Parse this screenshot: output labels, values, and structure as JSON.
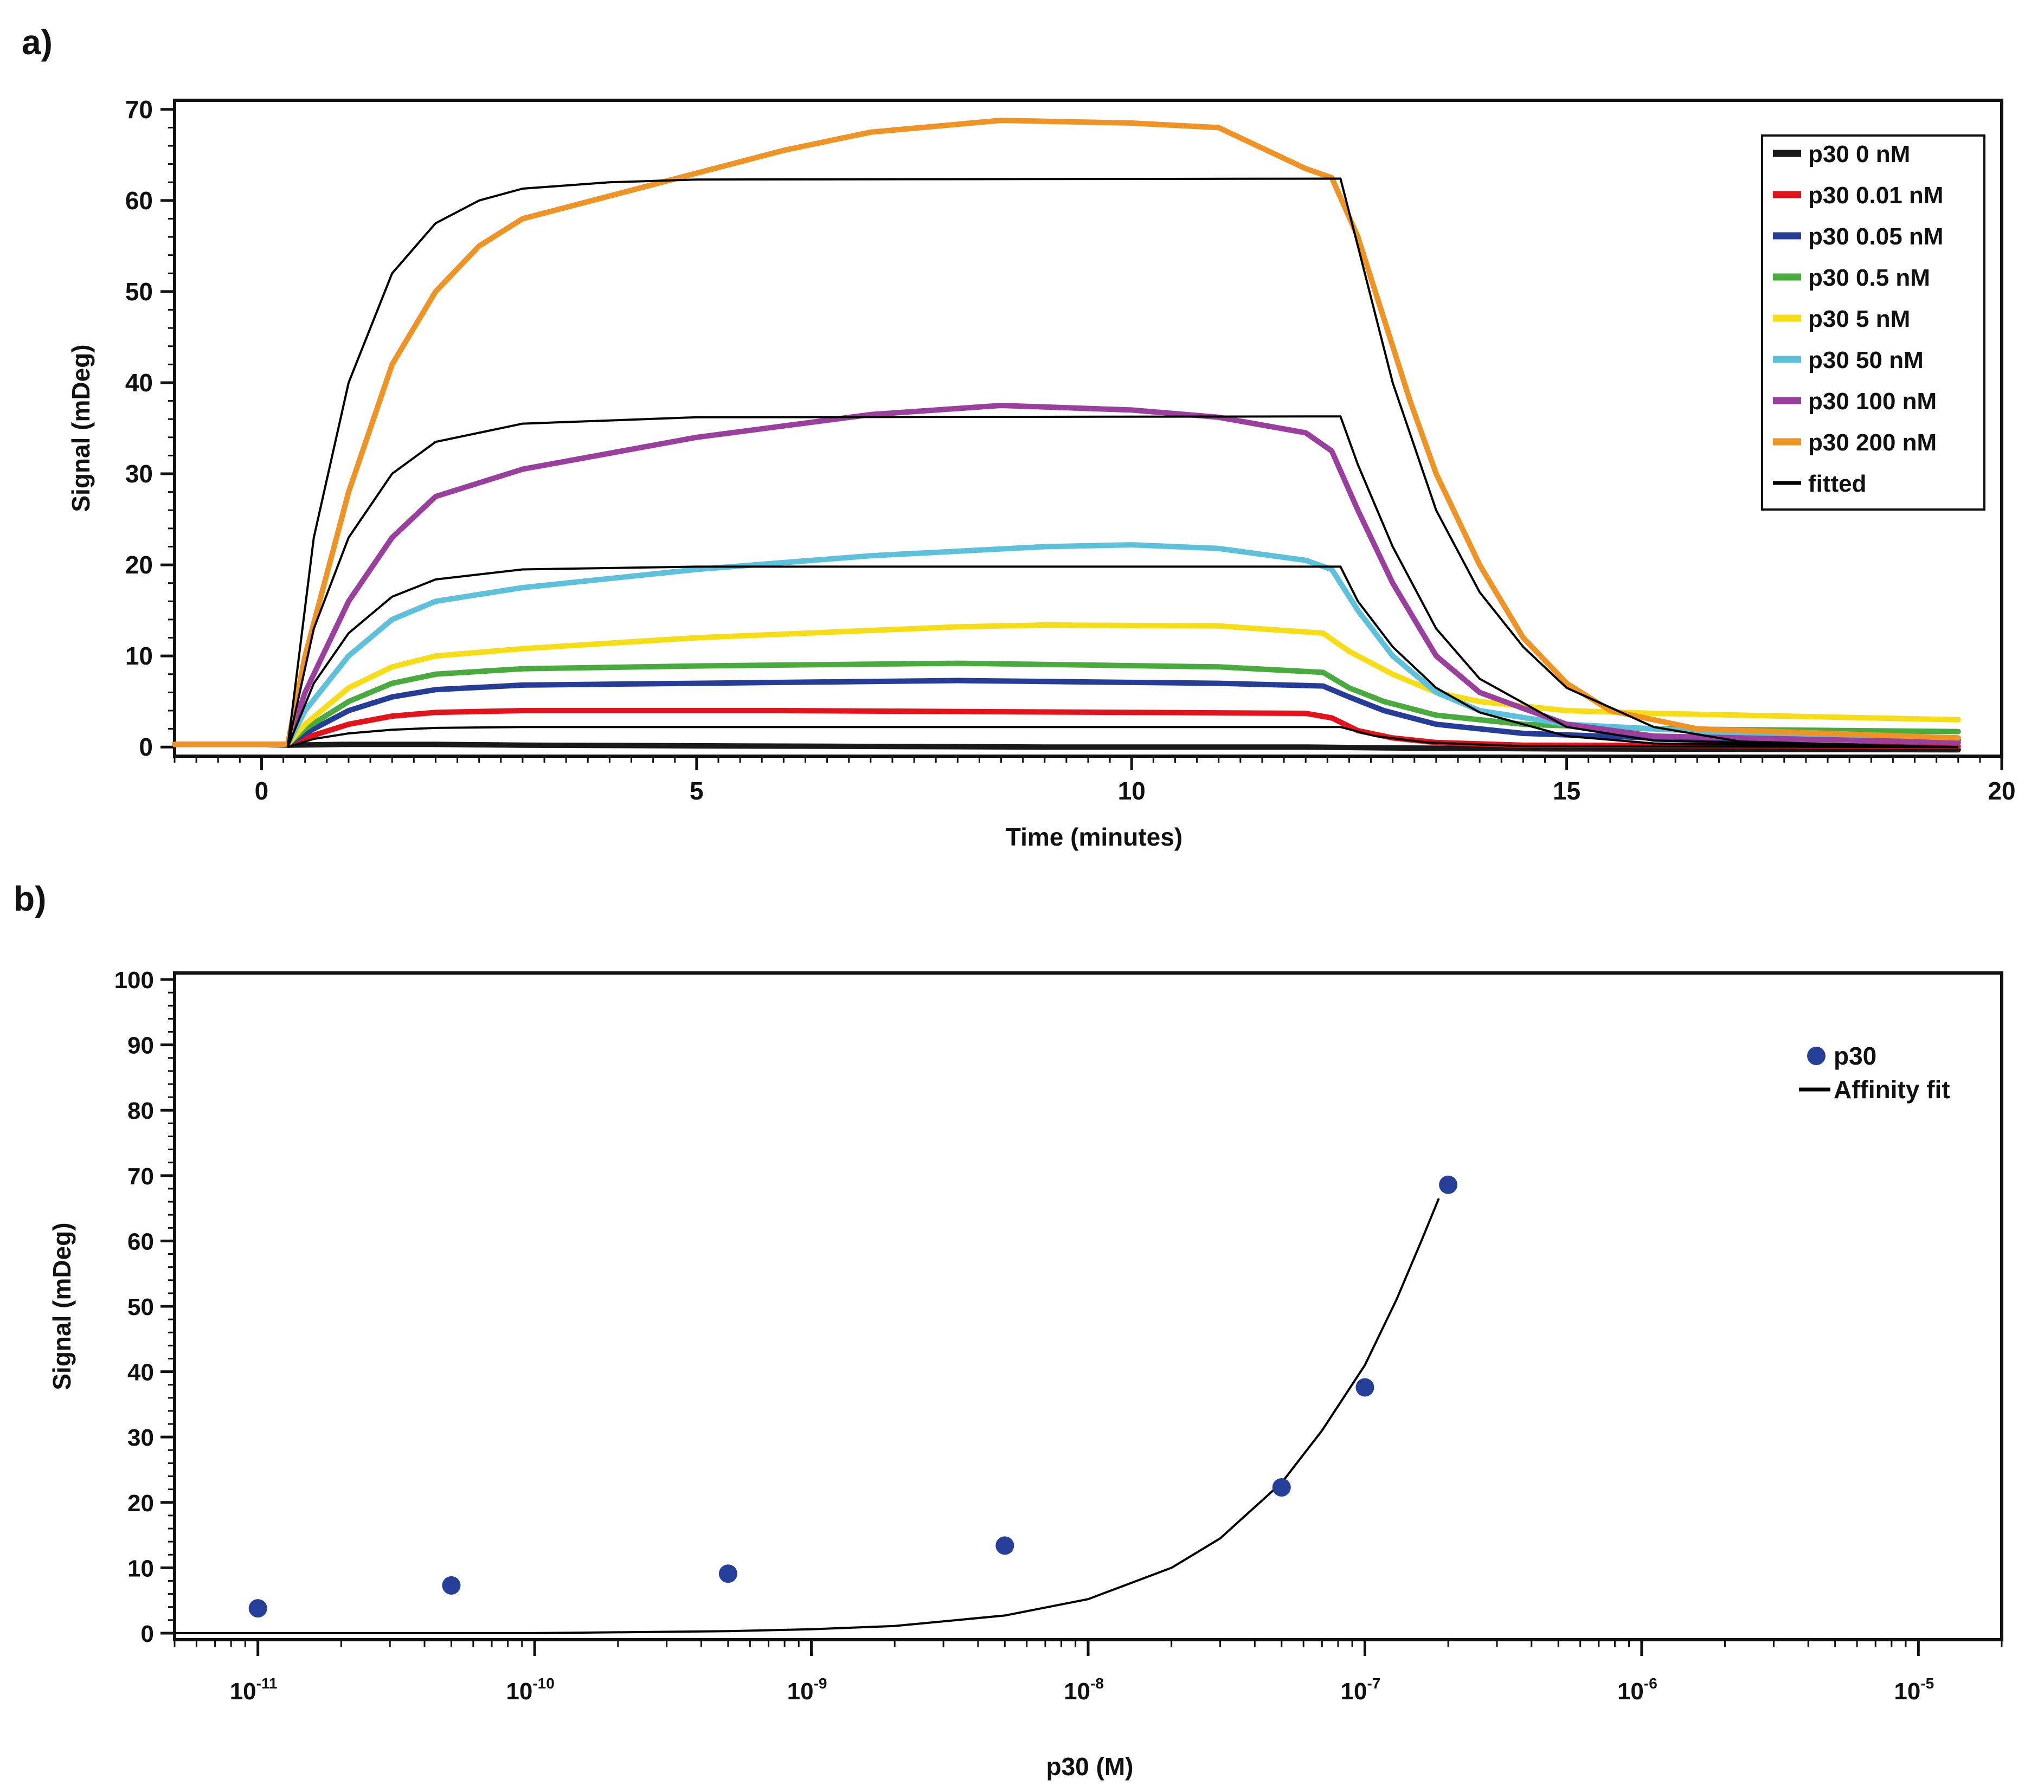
{
  "panel_labels": {
    "a": "a)",
    "b": "b)"
  },
  "colors": {
    "black": "#1a1a1a",
    "red": "#e3121b",
    "navy": "#263d97",
    "green": "#49aa3d",
    "yellow": "#f7dd16",
    "cyan": "#5ec1db",
    "purple": "#9a3f9d",
    "orange": "#ef9325",
    "fit": "#000000",
    "point": "#26409a"
  },
  "chart_data": [
    {
      "id": "a",
      "type": "line",
      "title": "",
      "xlabel": "Time (minutes)",
      "ylabel": "Signal (mDeg)",
      "xlim": [
        -1,
        20
      ],
      "ylim": [
        -1,
        71
      ],
      "xticks": [
        0,
        5,
        10,
        15,
        20
      ],
      "xtick_labels": [
        "0",
        "5",
        "10",
        "15",
        "20"
      ],
      "yticks": [
        0,
        10,
        20,
        30,
        40,
        50,
        60,
        70
      ],
      "ytick_labels": [
        "0",
        "10",
        "20",
        "30",
        "40",
        "50",
        "60",
        "70"
      ],
      "legend_position": "top-right",
      "series": [
        {
          "name": "p30 0 nM",
          "color": "black",
          "values": [
            [
              -1,
              0.3
            ],
            [
              0,
              0.3
            ],
            [
              0.3,
              0.2
            ],
            [
              1,
              0.3
            ],
            [
              2,
              0.3
            ],
            [
              3,
              0.2
            ],
            [
              6,
              0.1
            ],
            [
              9,
              0
            ],
            [
              12,
              0
            ],
            [
              13,
              -0.1
            ],
            [
              15,
              -0.2
            ],
            [
              19.5,
              -0.3
            ]
          ]
        },
        {
          "name": "p30 0.01 nM",
          "color": "red",
          "values": [
            [
              -1,
              0.3
            ],
            [
              0.3,
              0.3
            ],
            [
              0.5,
              1
            ],
            [
              1,
              2.5
            ],
            [
              1.5,
              3.4
            ],
            [
              2,
              3.8
            ],
            [
              3,
              4
            ],
            [
              6,
              4
            ],
            [
              10,
              3.8
            ],
            [
              12,
              3.7
            ],
            [
              12.3,
              3.2
            ],
            [
              12.6,
              1.8
            ],
            [
              13,
              1
            ],
            [
              13.5,
              0.5
            ],
            [
              14.5,
              0.2
            ],
            [
              19.5,
              0.1
            ]
          ]
        },
        {
          "name": "p30 0.05 nM",
          "color": "navy",
          "values": [
            [
              -1,
              0.3
            ],
            [
              0.3,
              0.3
            ],
            [
              0.5,
              1.5
            ],
            [
              1,
              4
            ],
            [
              1.5,
              5.5
            ],
            [
              2,
              6.3
            ],
            [
              3,
              6.8
            ],
            [
              5,
              7
            ],
            [
              8,
              7.3
            ],
            [
              11,
              7
            ],
            [
              12.2,
              6.7
            ],
            [
              12.5,
              5.5
            ],
            [
              12.9,
              4
            ],
            [
              13.5,
              2.5
            ],
            [
              14.5,
              1.5
            ],
            [
              16,
              1
            ],
            [
              19.5,
              0.8
            ]
          ]
        },
        {
          "name": "p30 0.5 nM",
          "color": "green",
          "values": [
            [
              -1,
              0.3
            ],
            [
              0.3,
              0.3
            ],
            [
              0.5,
              2
            ],
            [
              1,
              5
            ],
            [
              1.5,
              7
            ],
            [
              2,
              8
            ],
            [
              3,
              8.6
            ],
            [
              5,
              8.9
            ],
            [
              8,
              9.2
            ],
            [
              11,
              8.8
            ],
            [
              12.2,
              8.2
            ],
            [
              12.5,
              6.5
            ],
            [
              12.9,
              5
            ],
            [
              13.5,
              3.5
            ],
            [
              14.5,
              2.5
            ],
            [
              16,
              2
            ],
            [
              19.5,
              1.7
            ]
          ]
        },
        {
          "name": "p30 5 nM",
          "color": "yellow",
          "values": [
            [
              -1,
              0.3
            ],
            [
              0.3,
              0.3
            ],
            [
              0.5,
              2.5
            ],
            [
              1,
              6.5
            ],
            [
              1.5,
              8.8
            ],
            [
              2,
              10
            ],
            [
              3,
              10.8
            ],
            [
              5,
              12
            ],
            [
              8,
              13.2
            ],
            [
              9,
              13.4
            ],
            [
              11,
              13.3
            ],
            [
              12.2,
              12.5
            ],
            [
              12.5,
              10.5
            ],
            [
              13,
              8
            ],
            [
              13.5,
              6
            ],
            [
              14,
              5
            ],
            [
              15,
              4
            ],
            [
              16,
              3.7
            ],
            [
              19.5,
              3
            ]
          ]
        },
        {
          "name": "p30 50 nM",
          "color": "cyan",
          "values": [
            [
              -1,
              0.3
            ],
            [
              0.3,
              0.3
            ],
            [
              0.5,
              4
            ],
            [
              1,
              10
            ],
            [
              1.5,
              14
            ],
            [
              2,
              16
            ],
            [
              3,
              17.5
            ],
            [
              5,
              19.5
            ],
            [
              7,
              21
            ],
            [
              9,
              22
            ],
            [
              10,
              22.2
            ],
            [
              11,
              21.8
            ],
            [
              12,
              20.5
            ],
            [
              12.3,
              19.5
            ],
            [
              12.6,
              15
            ],
            [
              13,
              10
            ],
            [
              13.5,
              6
            ],
            [
              14,
              4
            ],
            [
              15,
              2.5
            ],
            [
              17,
              1.5
            ],
            [
              19.5,
              1
            ]
          ]
        },
        {
          "name": "p30 100 nM",
          "color": "purple",
          "values": [
            [
              -1,
              0.3
            ],
            [
              0.3,
              0.3
            ],
            [
              0.5,
              6
            ],
            [
              1,
              16
            ],
            [
              1.5,
              23
            ],
            [
              2,
              27.5
            ],
            [
              3,
              30.5
            ],
            [
              5,
              34
            ],
            [
              7,
              36.5
            ],
            [
              8.5,
              37.5
            ],
            [
              10,
              37
            ],
            [
              11,
              36.2
            ],
            [
              12,
              34.5
            ],
            [
              12.3,
              32.5
            ],
            [
              12.6,
              26
            ],
            [
              13,
              18
            ],
            [
              13.5,
              10
            ],
            [
              14,
              6
            ],
            [
              15,
              2.5
            ],
            [
              16,
              1.2
            ],
            [
              19.5,
              0.5
            ]
          ]
        },
        {
          "name": "p30 200 nM",
          "color": "orange",
          "values": [
            [
              -1,
              0.3
            ],
            [
              0.3,
              0.3
            ],
            [
              0.5,
              10
            ],
            [
              1,
              28
            ],
            [
              1.5,
              42
            ],
            [
              2,
              50
            ],
            [
              2.5,
              55
            ],
            [
              3,
              58
            ],
            [
              4,
              60.5
            ],
            [
              5,
              63
            ],
            [
              6,
              65.5
            ],
            [
              7,
              67.5
            ],
            [
              8.5,
              68.8
            ],
            [
              10,
              68.5
            ],
            [
              11,
              68
            ],
            [
              12,
              63.5
            ],
            [
              12.3,
              62.5
            ],
            [
              12.6,
              56
            ],
            [
              12.9,
              47
            ],
            [
              13.2,
              38
            ],
            [
              13.5,
              30
            ],
            [
              14,
              20
            ],
            [
              14.5,
              12
            ],
            [
              15,
              7
            ],
            [
              15.5,
              4
            ],
            [
              16.5,
              2
            ],
            [
              19.5,
              1
            ]
          ]
        },
        {
          "name": "fitted",
          "color": "fit",
          "thin": true,
          "values": [
            [
              0.3,
              0
            ],
            [
              0.6,
              0.9
            ],
            [
              1,
              1.5
            ],
            [
              1.5,
              1.9
            ],
            [
              2,
              2.1
            ],
            [
              3,
              2.2
            ],
            [
              12.3,
              2.2
            ],
            [
              12.4,
              2.2
            ],
            [
              12.8,
              1.2
            ],
            [
              13.4,
              0.5
            ],
            [
              14.5,
              0.1
            ],
            [
              19.5,
              0
            ]
          ]
        },
        {
          "name": "fitted",
          "color": "fit",
          "thin": true,
          "values": [
            [
              0.3,
              0
            ],
            [
              0.6,
              7
            ],
            [
              1,
              12.5
            ],
            [
              1.5,
              16.5
            ],
            [
              2,
              18.4
            ],
            [
              3,
              19.5
            ],
            [
              5,
              19.8
            ],
            [
              12.4,
              19.8
            ],
            [
              12.6,
              16
            ],
            [
              13,
              11
            ],
            [
              13.5,
              6.5
            ],
            [
              14,
              3.8
            ],
            [
              15,
              1.2
            ],
            [
              16,
              0.4
            ],
            [
              19.5,
              0
            ]
          ]
        },
        {
          "name": "fitted",
          "color": "fit",
          "thin": true,
          "values": [
            [
              0.3,
              0
            ],
            [
              0.6,
              13
            ],
            [
              1,
              23
            ],
            [
              1.5,
              30
            ],
            [
              2,
              33.5
            ],
            [
              3,
              35.5
            ],
            [
              5,
              36.2
            ],
            [
              12.4,
              36.3
            ],
            [
              12.6,
              31
            ],
            [
              13,
              22
            ],
            [
              13.5,
              13
            ],
            [
              14,
              7.5
            ],
            [
              15,
              2.2
            ],
            [
              16,
              0.7
            ],
            [
              19.5,
              0
            ]
          ]
        },
        {
          "name": "fitted",
          "color": "fit",
          "thin": true,
          "values": [
            [
              0.3,
              0
            ],
            [
              0.6,
              23
            ],
            [
              1,
              40
            ],
            [
              1.5,
              52
            ],
            [
              2,
              57.5
            ],
            [
              2.5,
              60
            ],
            [
              3,
              61.3
            ],
            [
              4,
              62
            ],
            [
              5,
              62.3
            ],
            [
              12.4,
              62.4
            ],
            [
              12.6,
              55
            ],
            [
              13,
              40
            ],
            [
              13.5,
              26
            ],
            [
              14,
              17
            ],
            [
              14.5,
              11
            ],
            [
              15,
              6.5
            ],
            [
              16,
              2.2
            ],
            [
              17,
              0.6
            ],
            [
              19.5,
              0
            ]
          ]
        }
      ]
    },
    {
      "id": "b",
      "type": "scatter",
      "title": "",
      "xlabel": "p30 (M)",
      "ylabel": "Signal (mDeg)",
      "xscale": "log",
      "xlim": [
        5e-12,
        2e-05
      ],
      "ylim": [
        -1,
        101
      ],
      "xtick_bases": [
        "10",
        "10",
        "10",
        "10",
        "10",
        "10",
        "10"
      ],
      "xtick_exps": [
        "-11",
        "-10",
        "-9",
        "-8",
        "-7",
        "-6",
        "-5"
      ],
      "xtick_values": [
        1e-11,
        1e-10,
        1e-09,
        1e-08,
        1e-07,
        1e-06,
        1e-05
      ],
      "yticks": [
        0,
        10,
        20,
        30,
        40,
        50,
        60,
        70,
        80,
        90,
        100
      ],
      "ytick_labels": [
        "0",
        "10",
        "20",
        "30",
        "40",
        "50",
        "60",
        "70",
        "80",
        "90",
        "100"
      ],
      "legend_position": "top-right",
      "series": [
        {
          "name": "p30",
          "kind": "points",
          "color": "point",
          "x": [
            1e-11,
            5e-11,
            5e-10,
            5e-09,
            5e-08,
            1e-07,
            2e-07
          ],
          "y": [
            3.8,
            7.3,
            9.1,
            13.4,
            22.3,
            37.6,
            68.6
          ]
        },
        {
          "name": "Affinity fit",
          "kind": "line",
          "color": "fit",
          "x": [
            5e-12,
            1e-11,
            1e-10,
            5e-10,
            1e-09,
            2e-09,
            5e-09,
            1e-08,
            2e-08,
            3e-08,
            5e-08,
            7e-08,
            1e-07,
            1.3e-07,
            1.6e-07,
            1.85e-07
          ],
          "y": [
            0,
            0,
            0,
            0.3,
            0.6,
            1.1,
            2.7,
            5.2,
            10,
            14.5,
            23,
            31,
            41,
            51,
            60,
            66.5
          ]
        }
      ]
    }
  ]
}
